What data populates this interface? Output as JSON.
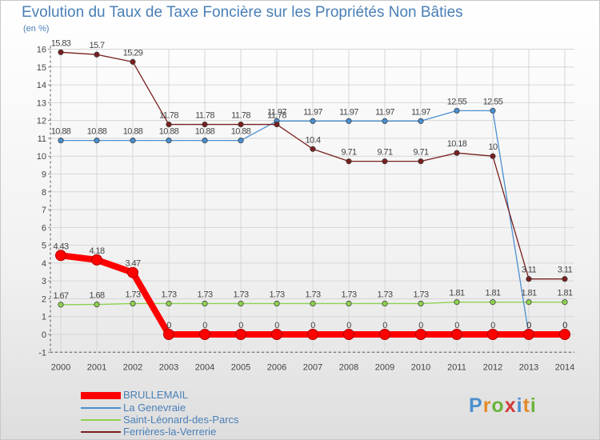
{
  "chart_data": {
    "type": "line",
    "title": "Evolution du Taux de Taxe Foncière sur les Propriétés Non Bâties",
    "ylabel": "(en %)",
    "xlabel": "",
    "ylim": [
      -1,
      16
    ],
    "yticks": [
      "-1",
      "0",
      "1",
      "2",
      "3",
      "4",
      "5",
      "6",
      "7",
      "8",
      "9",
      "10",
      "11",
      "12",
      "13",
      "14",
      "15",
      "16"
    ],
    "x": [
      "2000",
      "2001",
      "2002",
      "2003",
      "2004",
      "2005",
      "2006",
      "2007",
      "2008",
      "2009",
      "2010",
      "2011",
      "2012",
      "2013",
      "2014"
    ],
    "series": [
      {
        "name": "BRULLEMAIL",
        "color": "#ff0000",
        "values": [
          4.43,
          4.18,
          3.47,
          0,
          0,
          0,
          0,
          0,
          0,
          0,
          0,
          0,
          0,
          0,
          0
        ],
        "labels": [
          "4.43",
          "4.18",
          "3.47",
          "0",
          "0",
          "0",
          "0",
          "0",
          "0",
          "0",
          "0",
          "0",
          "0",
          "0",
          "0"
        ]
      },
      {
        "name": "La Genevraie",
        "color": "#4a8fd0",
        "values": [
          10.88,
          10.88,
          10.88,
          10.88,
          10.88,
          10.88,
          11.97,
          11.97,
          11.97,
          11.97,
          11.97,
          12.55,
          12.55,
          0,
          0
        ],
        "labels": [
          "10.88",
          "10.88",
          "10.88",
          "10.88",
          "10.88",
          "10.88",
          "11.97",
          "11.97",
          "11.97",
          "11.97",
          "11.97",
          "12.55",
          "12.55",
          "0",
          "0"
        ]
      },
      {
        "name": "Saint-Léonard-des-Parcs",
        "color": "#8ed150",
        "values": [
          1.67,
          1.68,
          1.73,
          1.73,
          1.73,
          1.73,
          1.73,
          1.73,
          1.73,
          1.73,
          1.73,
          1.81,
          1.81,
          1.81,
          1.81
        ],
        "labels": [
          "1.67",
          "1.68",
          "1.73",
          "1.73",
          "1.73",
          "1.73",
          "1.73",
          "1.73",
          "1.73",
          "1.73",
          "1.73",
          "1.81",
          "1.81",
          "1.81",
          "1.81"
        ]
      },
      {
        "name": "Ferrières-la-Verrerie",
        "color": "#7a2020",
        "values": [
          15.83,
          15.7,
          15.29,
          11.78,
          11.78,
          11.78,
          11.78,
          10.4,
          9.71,
          9.71,
          9.71,
          10.18,
          10,
          3.11,
          3.11
        ],
        "labels": [
          "15.83",
          "15.7",
          "15.29",
          "11.78",
          "11.78",
          "11.78",
          "11.78",
          "10.4",
          "9.71",
          "9.71",
          "9.71",
          "10.18",
          "10",
          "3.11",
          "3.11"
        ]
      }
    ]
  },
  "logo": {
    "p": "P",
    "r": "r",
    "o": "o",
    "x": "x",
    "i": "i",
    "t": "t",
    "i2": "i"
  }
}
